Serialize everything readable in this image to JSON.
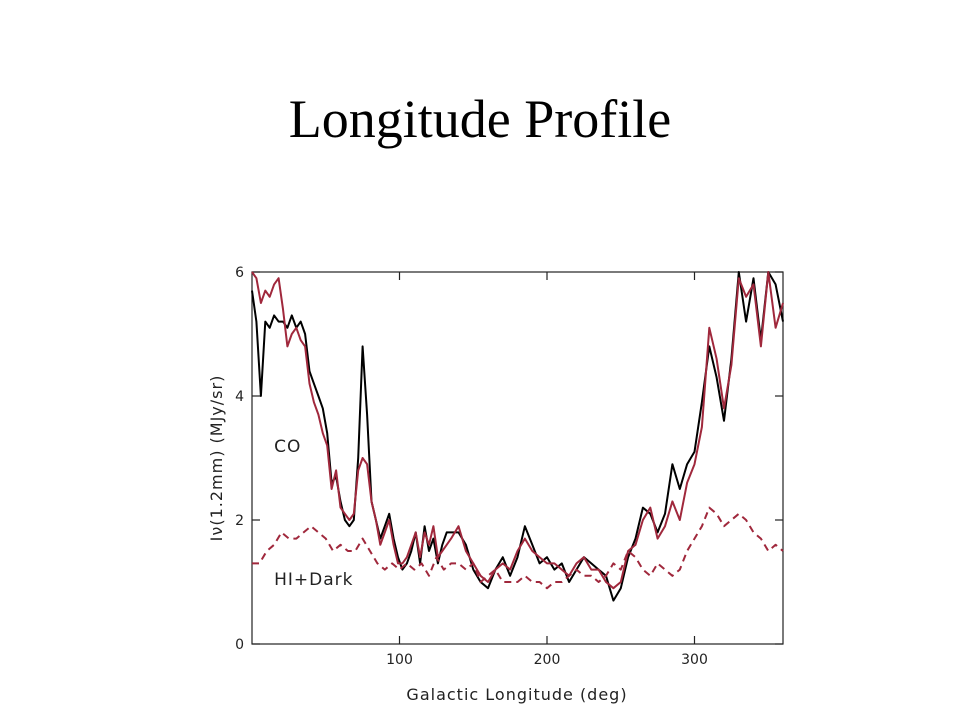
{
  "slide": {
    "title": "Longitude Profile"
  },
  "colors": {
    "data_line": "#000000",
    "model_line": "#a0283c",
    "axis": "#222222"
  },
  "chart_data": {
    "type": "line",
    "xlabel": "Galactic Longitude (deg)",
    "ylabel": "Iν(1.2mm) (MJy/sr)",
    "xlim": [
      0,
      360
    ],
    "ylim": [
      0,
      6
    ],
    "xticks": [
      100,
      200,
      300
    ],
    "yticks": [
      0,
      2,
      4,
      6
    ],
    "grid": false,
    "annotations": [
      {
        "text": "CO",
        "x": 15,
        "y": 3.1
      },
      {
        "text": "HI+Dark",
        "x": 15,
        "y": 0.95
      }
    ],
    "series": [
      {
        "style": "solid",
        "color": "#000000",
        "x": [
          0,
          3,
          6,
          9,
          12,
          15,
          18,
          21,
          24,
          27,
          30,
          33,
          36,
          39,
          42,
          45,
          48,
          51,
          54,
          57,
          60,
          63,
          66,
          69,
          72,
          75,
          78,
          81,
          84,
          87,
          90,
          93,
          96,
          99,
          102,
          105,
          108,
          111,
          114,
          117,
          120,
          123,
          126,
          129,
          132,
          135,
          140,
          145,
          150,
          155,
          160,
          165,
          170,
          175,
          180,
          185,
          190,
          195,
          200,
          205,
          210,
          215,
          220,
          225,
          230,
          235,
          240,
          245,
          250,
          255,
          260,
          265,
          270,
          275,
          280,
          285,
          290,
          295,
          300,
          305,
          310,
          315,
          320,
          325,
          330,
          335,
          340,
          345,
          350,
          355,
          360
        ],
        "y": [
          5.7,
          5.2,
          4.0,
          5.2,
          5.1,
          5.3,
          5.2,
          5.2,
          5.1,
          5.3,
          5.1,
          5.2,
          5.0,
          4.4,
          4.2,
          4.0,
          3.8,
          3.4,
          2.6,
          2.7,
          2.3,
          2.0,
          1.9,
          2.0,
          3.0,
          4.8,
          3.7,
          2.3,
          2.0,
          1.7,
          1.9,
          2.1,
          1.7,
          1.4,
          1.2,
          1.3,
          1.5,
          1.8,
          1.3,
          1.9,
          1.5,
          1.7,
          1.3,
          1.6,
          1.8,
          1.8,
          1.8,
          1.6,
          1.2,
          1.0,
          0.9,
          1.2,
          1.4,
          1.1,
          1.4,
          1.9,
          1.6,
          1.3,
          1.4,
          1.2,
          1.3,
          1.0,
          1.2,
          1.4,
          1.3,
          1.2,
          1.1,
          0.7,
          0.9,
          1.4,
          1.7,
          2.2,
          2.1,
          1.8,
          2.1,
          2.9,
          2.5,
          2.9,
          3.1,
          3.9,
          4.8,
          4.3,
          3.6,
          4.6,
          6.0,
          5.2,
          5.9,
          4.9,
          6.0,
          5.8,
          5.2
        ]
      },
      {
        "style": "solid",
        "color": "#a0283c",
        "x": [
          0,
          3,
          6,
          9,
          12,
          15,
          18,
          21,
          24,
          27,
          30,
          33,
          36,
          39,
          42,
          45,
          48,
          51,
          54,
          57,
          60,
          63,
          66,
          69,
          72,
          75,
          78,
          81,
          84,
          87,
          90,
          93,
          96,
          99,
          102,
          105,
          108,
          111,
          114,
          117,
          120,
          123,
          126,
          129,
          132,
          135,
          140,
          145,
          150,
          155,
          160,
          165,
          170,
          175,
          180,
          185,
          190,
          195,
          200,
          205,
          210,
          215,
          220,
          225,
          230,
          235,
          240,
          245,
          250,
          255,
          260,
          265,
          270,
          275,
          280,
          285,
          290,
          295,
          300,
          305,
          310,
          315,
          320,
          325,
          330,
          335,
          340,
          345,
          350,
          355,
          360
        ],
        "y": [
          6.0,
          5.9,
          5.5,
          5.7,
          5.6,
          5.8,
          5.9,
          5.4,
          4.8,
          5.0,
          5.1,
          4.9,
          4.8,
          4.2,
          3.9,
          3.7,
          3.4,
          3.2,
          2.5,
          2.8,
          2.2,
          2.1,
          2.0,
          2.1,
          2.8,
          3.0,
          2.9,
          2.3,
          2.0,
          1.6,
          1.8,
          2.0,
          1.6,
          1.3,
          1.3,
          1.4,
          1.6,
          1.8,
          1.4,
          1.8,
          1.6,
          1.9,
          1.4,
          1.5,
          1.6,
          1.7,
          1.9,
          1.5,
          1.3,
          1.1,
          1.0,
          1.2,
          1.3,
          1.2,
          1.5,
          1.7,
          1.5,
          1.4,
          1.3,
          1.3,
          1.2,
          1.1,
          1.3,
          1.4,
          1.2,
          1.2,
          1.0,
          0.9,
          1.0,
          1.5,
          1.6,
          2.0,
          2.2,
          1.7,
          1.9,
          2.3,
          2.0,
          2.6,
          2.9,
          3.5,
          5.1,
          4.6,
          3.8,
          4.5,
          5.9,
          5.6,
          5.8,
          4.8,
          6.0,
          5.1,
          5.5
        ]
      },
      {
        "style": "dashed",
        "color": "#a0283c",
        "x": [
          0,
          5,
          10,
          15,
          20,
          25,
          30,
          35,
          40,
          45,
          50,
          55,
          60,
          65,
          70,
          75,
          80,
          85,
          90,
          95,
          100,
          105,
          110,
          115,
          120,
          125,
          130,
          135,
          140,
          145,
          150,
          155,
          160,
          165,
          170,
          175,
          180,
          185,
          190,
          195,
          200,
          205,
          210,
          215,
          220,
          225,
          230,
          235,
          240,
          245,
          250,
          255,
          260,
          265,
          270,
          275,
          280,
          285,
          290,
          295,
          300,
          305,
          310,
          315,
          320,
          325,
          330,
          335,
          340,
          345,
          350,
          355,
          360
        ],
        "y": [
          1.3,
          1.3,
          1.5,
          1.6,
          1.8,
          1.7,
          1.7,
          1.8,
          1.9,
          1.8,
          1.7,
          1.5,
          1.6,
          1.5,
          1.5,
          1.7,
          1.5,
          1.3,
          1.2,
          1.3,
          1.2,
          1.3,
          1.2,
          1.3,
          1.1,
          1.4,
          1.2,
          1.3,
          1.3,
          1.2,
          1.3,
          1.0,
          1.1,
          1.2,
          1.0,
          1.0,
          1.0,
          1.1,
          1.0,
          1.0,
          0.9,
          1.0,
          1.0,
          1.1,
          1.2,
          1.1,
          1.1,
          1.0,
          1.1,
          1.3,
          1.2,
          1.5,
          1.4,
          1.2,
          1.1,
          1.3,
          1.2,
          1.1,
          1.2,
          1.5,
          1.7,
          1.9,
          2.2,
          2.1,
          1.9,
          2.0,
          2.1,
          2.0,
          1.8,
          1.7,
          1.5,
          1.6,
          1.5
        ]
      }
    ]
  }
}
